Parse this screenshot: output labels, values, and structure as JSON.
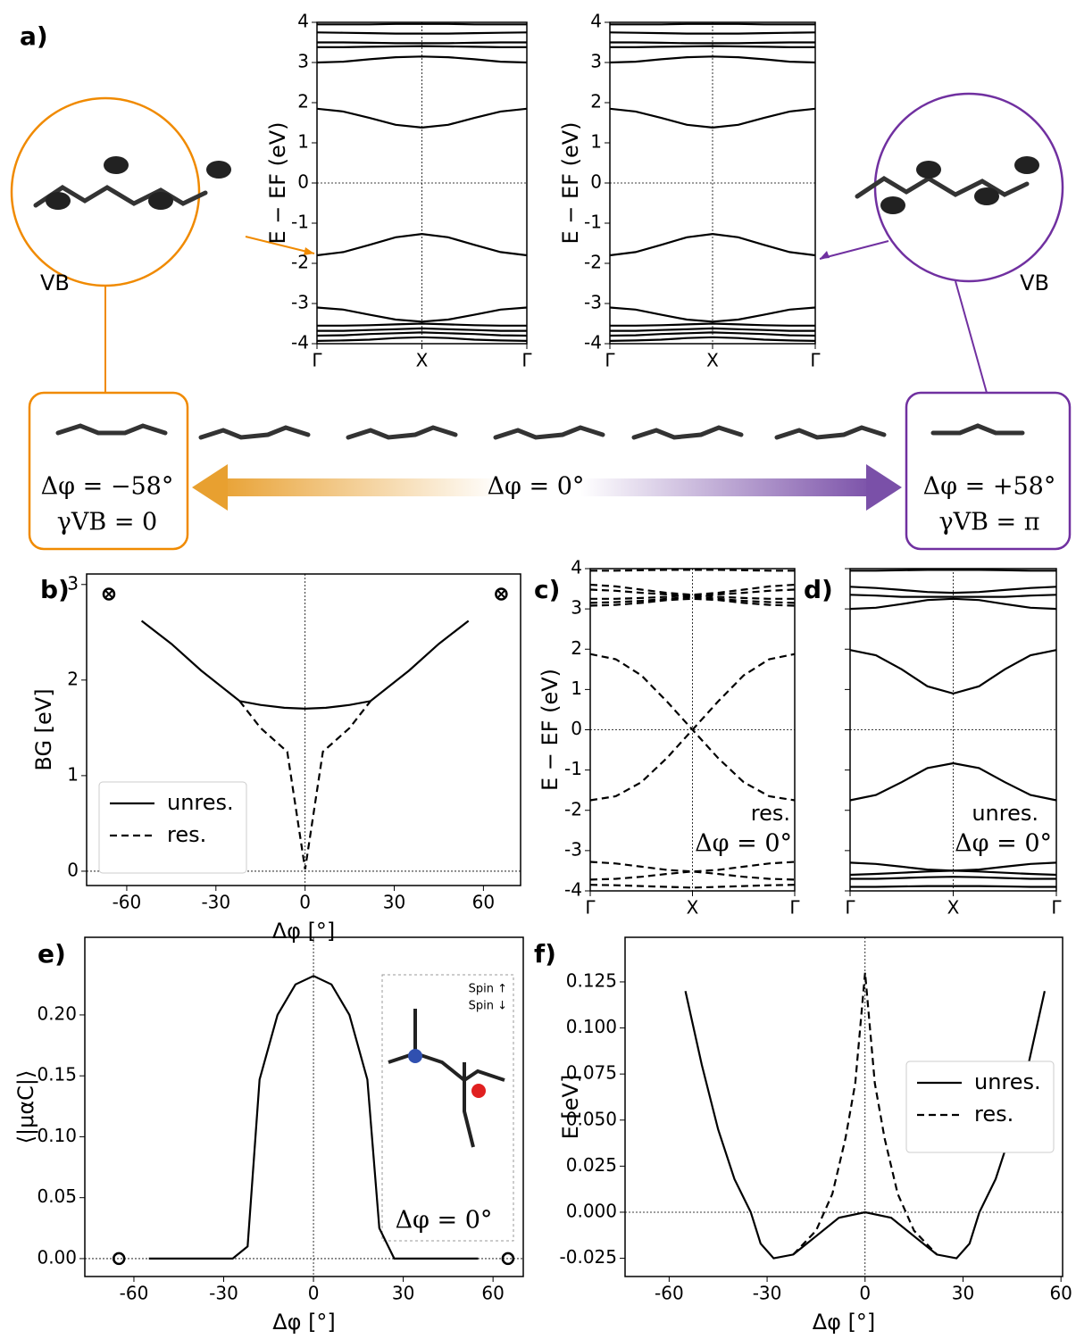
{
  "chart_data": [
    {
      "type": "line",
      "label": "a)",
      "ylabel": "E − EF (eV)",
      "xlim": [
        0,
        1
      ],
      "ylim": [
        -4,
        4
      ],
      "xticks": [
        {
          "value": 0,
          "label": "Γ"
        },
        {
          "value": 0.5,
          "label": "X"
        },
        {
          "value": 1,
          "label": "Γ"
        }
      ],
      "yticks": [
        -4,
        -3,
        -2,
        -1,
        0,
        1,
        2,
        3,
        4
      ],
      "annotations": [
        "VB",
        "Δφ = −58°",
        "γVB = 0",
        "Δφ = 0°"
      ],
      "x": [
        0,
        0.125,
        0.25,
        0.375,
        0.5,
        0.625,
        0.75,
        0.875,
        1
      ],
      "series": [
        {
          "color": "#000000",
          "values": [
            3.95,
            3.95,
            3.95,
            3.96,
            3.96,
            3.96,
            3.95,
            3.95,
            3.95
          ]
        },
        {
          "color": "#000000",
          "values": [
            3.75,
            3.74,
            3.73,
            3.72,
            3.72,
            3.72,
            3.73,
            3.74,
            3.75
          ]
        },
        {
          "color": "#000000",
          "values": [
            3.5,
            3.5,
            3.49,
            3.48,
            3.48,
            3.48,
            3.49,
            3.5,
            3.5
          ]
        },
        {
          "color": "#000000",
          "values": [
            3.38,
            3.38,
            3.39,
            3.4,
            3.41,
            3.4,
            3.39,
            3.38,
            3.38
          ]
        },
        {
          "color": "#000000",
          "values": [
            3.0,
            3.02,
            3.08,
            3.13,
            3.15,
            3.13,
            3.08,
            3.02,
            3.0
          ]
        },
        {
          "color": "#000000",
          "values": [
            1.85,
            1.78,
            1.62,
            1.45,
            1.38,
            1.45,
            1.62,
            1.78,
            1.85
          ]
        },
        {
          "color": "#000000",
          "values": [
            -1.8,
            -1.72,
            -1.54,
            -1.35,
            -1.27,
            -1.35,
            -1.54,
            -1.72,
            -1.8
          ]
        },
        {
          "color": "#000000",
          "values": [
            -3.1,
            -3.15,
            -3.28,
            -3.4,
            -3.45,
            -3.4,
            -3.28,
            -3.15,
            -3.1
          ]
        },
        {
          "color": "#000000",
          "values": [
            -3.55,
            -3.55,
            -3.54,
            -3.52,
            -3.5,
            -3.52,
            -3.54,
            -3.55,
            -3.55
          ]
        },
        {
          "color": "#000000",
          "values": [
            -3.68,
            -3.68,
            -3.66,
            -3.64,
            -3.62,
            -3.64,
            -3.66,
            -3.68,
            -3.68
          ]
        },
        {
          "color": "#000000",
          "values": [
            -3.8,
            -3.79,
            -3.76,
            -3.74,
            -3.72,
            -3.74,
            -3.76,
            -3.79,
            -3.8
          ]
        },
        {
          "color": "#000000",
          "values": [
            -3.93,
            -3.92,
            -3.9,
            -3.86,
            -3.84,
            -3.86,
            -3.9,
            -3.92,
            -3.93
          ]
        }
      ]
    },
    {
      "type": "line",
      "ylabel": "E − EF (eV)",
      "xlim": [
        0,
        1
      ],
      "ylim": [
        -4,
        4
      ],
      "xticks": [
        {
          "value": 0,
          "label": "Γ"
        },
        {
          "value": 0.5,
          "label": "X"
        },
        {
          "value": 1,
          "label": "Γ"
        }
      ],
      "yticks": [
        -4,
        -3,
        -2,
        -1,
        0,
        1,
        2,
        3,
        4
      ],
      "annotations": [
        "VB",
        "Δφ = +58°",
        "γVB = π"
      ],
      "x": [
        0,
        0.125,
        0.25,
        0.375,
        0.5,
        0.625,
        0.75,
        0.875,
        1
      ],
      "series": [
        {
          "color": "#000000",
          "values": [
            3.95,
            3.95,
            3.95,
            3.96,
            3.96,
            3.96,
            3.95,
            3.95,
            3.95
          ]
        },
        {
          "color": "#000000",
          "values": [
            3.75,
            3.74,
            3.73,
            3.72,
            3.72,
            3.72,
            3.73,
            3.74,
            3.75
          ]
        },
        {
          "color": "#000000",
          "values": [
            3.5,
            3.5,
            3.49,
            3.48,
            3.48,
            3.48,
            3.49,
            3.5,
            3.5
          ]
        },
        {
          "color": "#000000",
          "values": [
            3.38,
            3.38,
            3.39,
            3.4,
            3.41,
            3.4,
            3.39,
            3.38,
            3.38
          ]
        },
        {
          "color": "#000000",
          "values": [
            3.0,
            3.02,
            3.08,
            3.13,
            3.15,
            3.13,
            3.08,
            3.02,
            3.0
          ]
        },
        {
          "color": "#000000",
          "values": [
            1.85,
            1.78,
            1.62,
            1.45,
            1.38,
            1.45,
            1.62,
            1.78,
            1.85
          ]
        },
        {
          "color": "#000000",
          "values": [
            -1.8,
            -1.72,
            -1.54,
            -1.35,
            -1.27,
            -1.35,
            -1.54,
            -1.72,
            -1.8
          ]
        },
        {
          "color": "#000000",
          "values": [
            -3.1,
            -3.15,
            -3.28,
            -3.4,
            -3.45,
            -3.4,
            -3.28,
            -3.15,
            -3.1
          ]
        },
        {
          "color": "#000000",
          "values": [
            -3.55,
            -3.55,
            -3.54,
            -3.52,
            -3.5,
            -3.52,
            -3.54,
            -3.55,
            -3.55
          ]
        },
        {
          "color": "#000000",
          "values": [
            -3.68,
            -3.68,
            -3.66,
            -3.64,
            -3.62,
            -3.64,
            -3.66,
            -3.68,
            -3.68
          ]
        },
        {
          "color": "#000000",
          "values": [
            -3.8,
            -3.79,
            -3.76,
            -3.74,
            -3.72,
            -3.74,
            -3.76,
            -3.79,
            -3.8
          ]
        },
        {
          "color": "#000000",
          "values": [
            -3.93,
            -3.92,
            -3.9,
            -3.86,
            -3.84,
            -3.86,
            -3.9,
            -3.92,
            -3.93
          ]
        }
      ]
    },
    {
      "type": "line",
      "label": "b)",
      "xlabel": "Δφ [°]",
      "ylabel": "BG [eV]",
      "xlim": [
        -73.5,
        72.5
      ],
      "ylim": [
        -0.15,
        3.11
      ],
      "xticks": [
        -60,
        -30,
        0,
        30,
        60
      ],
      "yticks": [
        0,
        1,
        2,
        3
      ],
      "legend": "lower left",
      "series": [
        {
          "name": "unres.",
          "color": "#000000",
          "linestyle": "solid",
          "x": [
            -55,
            -45,
            -35,
            -22,
            -15,
            -7,
            0,
            7,
            15,
            22,
            35,
            45,
            55
          ],
          "values": [
            2.62,
            2.38,
            2.1,
            1.78,
            1.74,
            1.71,
            1.7,
            1.71,
            1.74,
            1.78,
            2.1,
            2.38,
            2.62
          ]
        },
        {
          "name": "res.",
          "color": "#000000",
          "linestyle": "dashed",
          "x": [
            -22,
            -15,
            -6,
            0,
            6,
            15,
            22
          ],
          "values": [
            1.78,
            1.5,
            1.25,
            0.02,
            1.25,
            1.5,
            1.78
          ]
        },
        {
          "color": "#000000",
          "marker": "circle-x",
          "x": [
            -66,
            66
          ],
          "values": [
            2.9,
            2.9
          ]
        }
      ]
    },
    {
      "type": "line",
      "label": "c)",
      "ylabel": "E − EF (eV)",
      "xlim": [
        0,
        1
      ],
      "ylim": [
        -4,
        4
      ],
      "xticks": [
        {
          "value": 0,
          "label": "Γ"
        },
        {
          "value": 0.5,
          "label": "X"
        },
        {
          "value": 1,
          "label": "Γ"
        }
      ],
      "yticks": [
        -4,
        -3,
        -2,
        -1,
        0,
        1,
        2,
        3,
        4
      ],
      "annotations": [
        "res.",
        "Δφ = 0°"
      ],
      "x": [
        0,
        0.125,
        0.25,
        0.375,
        0.5,
        0.625,
        0.75,
        0.875,
        1
      ],
      "series": [
        {
          "color": "#000000",
          "linestyle": "dashed",
          "values": [
            3.95,
            3.95,
            3.96,
            3.97,
            3.97,
            3.97,
            3.96,
            3.95,
            3.95
          ]
        },
        {
          "color": "#000000",
          "linestyle": "dashed",
          "values": [
            3.6,
            3.56,
            3.48,
            3.4,
            3.35,
            3.3,
            3.27,
            3.25,
            3.25
          ]
        },
        {
          "color": "#000000",
          "linestyle": "dashed",
          "values": [
            3.25,
            3.25,
            3.27,
            3.3,
            3.35,
            3.4,
            3.48,
            3.56,
            3.6
          ]
        },
        {
          "color": "#000000",
          "linestyle": "dashed",
          "values": [
            3.48,
            3.45,
            3.4,
            3.36,
            3.3,
            3.25,
            3.2,
            3.17,
            3.15
          ]
        },
        {
          "color": "#000000",
          "linestyle": "dashed",
          "values": [
            3.15,
            3.17,
            3.2,
            3.25,
            3.3,
            3.36,
            3.4,
            3.45,
            3.48
          ]
        },
        {
          "color": "#000000",
          "linestyle": "dashed",
          "values": [
            3.08,
            3.1,
            3.15,
            3.22,
            3.25,
            3.22,
            3.15,
            3.1,
            3.08
          ]
        },
        {
          "color": "#000000",
          "linestyle": "dashed",
          "values": [
            1.88,
            1.75,
            1.35,
            0.7,
            0,
            -0.7,
            -1.3,
            -1.65,
            -1.75
          ]
        },
        {
          "color": "#000000",
          "linestyle": "dashed",
          "values": [
            -1.75,
            -1.65,
            -1.3,
            -0.7,
            0,
            0.7,
            1.35,
            1.75,
            1.88
          ]
        },
        {
          "color": "#000000",
          "linestyle": "dashed",
          "values": [
            -3.28,
            -3.32,
            -3.4,
            -3.48,
            -3.52,
            -3.58,
            -3.65,
            -3.7,
            -3.72
          ]
        },
        {
          "color": "#000000",
          "linestyle": "dashed",
          "values": [
            -3.72,
            -3.7,
            -3.65,
            -3.58,
            -3.52,
            -3.48,
            -3.4,
            -3.32,
            -3.28
          ]
        },
        {
          "color": "#000000",
          "linestyle": "dashed",
          "values": [
            -3.85,
            -3.86,
            -3.88,
            -3.9,
            -3.92,
            -3.9,
            -3.88,
            -3.86,
            -3.85
          ]
        }
      ]
    },
    {
      "type": "line",
      "label": "d)",
      "xlim": [
        0,
        1
      ],
      "ylim": [
        -4,
        4
      ],
      "xticks": [
        {
          "value": 0,
          "label": "Γ"
        },
        {
          "value": 0.5,
          "label": "X"
        },
        {
          "value": 1,
          "label": "Γ"
        }
      ],
      "yticks": [
        -4,
        -3,
        -2,
        -1,
        0,
        1,
        2,
        3,
        4
      ],
      "hide_ytick_labels": true,
      "annotations": [
        "unres.",
        "Δφ = 0°"
      ],
      "x": [
        0,
        0.125,
        0.25,
        0.375,
        0.5,
        0.625,
        0.75,
        0.875,
        1
      ],
      "series": [
        {
          "color": "#000000",
          "values": [
            3.95,
            3.95,
            3.96,
            3.97,
            3.97,
            3.97,
            3.96,
            3.95,
            3.95
          ]
        },
        {
          "color": "#000000",
          "values": [
            3.55,
            3.52,
            3.47,
            3.42,
            3.4,
            3.42,
            3.47,
            3.52,
            3.55
          ]
        },
        {
          "color": "#000000",
          "values": [
            3.35,
            3.33,
            3.3,
            3.3,
            3.3,
            3.3,
            3.3,
            3.33,
            3.35
          ]
        },
        {
          "color": "#000000",
          "values": [
            3.0,
            3.03,
            3.12,
            3.22,
            3.25,
            3.22,
            3.12,
            3.03,
            3.0
          ]
        },
        {
          "color": "#000000",
          "values": [
            1.98,
            1.85,
            1.5,
            1.08,
            0.9,
            1.08,
            1.5,
            1.85,
            1.98
          ]
        },
        {
          "color": "#000000",
          "values": [
            -1.75,
            -1.62,
            -1.3,
            -0.95,
            -0.83,
            -0.95,
            -1.3,
            -1.62,
            -1.75
          ]
        },
        {
          "color": "#000000",
          "values": [
            -3.3,
            -3.33,
            -3.4,
            -3.47,
            -3.5,
            -3.47,
            -3.4,
            -3.33,
            -3.3
          ]
        },
        {
          "color": "#000000",
          "values": [
            -3.6,
            -3.58,
            -3.55,
            -3.52,
            -3.5,
            -3.52,
            -3.55,
            -3.58,
            -3.6
          ]
        },
        {
          "color": "#000000",
          "values": [
            -3.7,
            -3.7,
            -3.68,
            -3.66,
            -3.65,
            -3.66,
            -3.68,
            -3.7,
            -3.7
          ]
        },
        {
          "color": "#000000",
          "values": [
            -3.9,
            -3.9,
            -3.89,
            -3.88,
            -3.88,
            -3.88,
            -3.89,
            -3.9,
            -3.9
          ]
        }
      ]
    },
    {
      "type": "line",
      "label": "e)",
      "xlabel": "Δφ [°]",
      "ylabel": "⟨|μαC|⟩",
      "xlim": [
        -76.4,
        70.1
      ],
      "ylim": [
        -0.0147,
        0.2637
      ],
      "xticks": [
        -60,
        -30,
        0,
        30,
        60
      ],
      "yticks": [
        {
          "value": 0,
          "label": "0.00"
        },
        0.05,
        {
          "value": 0.1,
          "label": "0.10"
        },
        0.15,
        {
          "value": 0.2,
          "label": "0.20"
        }
      ],
      "annotations": [
        "Spin ↑",
        "Spin ↓",
        "Δφ = 0°"
      ],
      "series": [
        {
          "color": "#000000",
          "x": [
            -55,
            -27,
            -22,
            -18,
            -12,
            -6,
            0,
            6,
            12,
            18,
            22,
            27,
            55
          ],
          "values": [
            0,
            0,
            0.01,
            0.147,
            0.2,
            0.225,
            0.232,
            0.225,
            0.2,
            0.147,
            0.025,
            0,
            0
          ]
        },
        {
          "color": "#000000",
          "marker": "circle",
          "x": [
            -65,
            65
          ],
          "values": [
            0,
            0
          ]
        }
      ]
    },
    {
      "type": "line",
      "label": "f)",
      "xlabel": "Δφ [°]",
      "ylabel": "E [eV]",
      "xlim": [
        -73.5,
        60.5
      ],
      "ylim": [
        -0.0349,
        0.1492
      ],
      "xticks": [
        -60,
        -30,
        0,
        30,
        60
      ],
      "yticks": [
        -0.025,
        {
          "value": 0,
          "label": "0.000"
        },
        0.025,
        {
          "value": 0.05,
          "label": "0.050"
        },
        0.075,
        {
          "value": 0.1,
          "label": "0.100"
        },
        0.125
      ],
      "legend": "center right",
      "series": [
        {
          "name": "unres.",
          "color": "#000000",
          "linestyle": "solid",
          "x": [
            -55,
            -50,
            -45,
            -40,
            -35,
            -32,
            -28,
            -22,
            -15,
            -8,
            0,
            8,
            15,
            22,
            28,
            32,
            35,
            40,
            45,
            50,
            55
          ],
          "values": [
            0.12,
            0.08,
            0.045,
            0.018,
            0,
            -0.017,
            -0.025,
            -0.023,
            -0.013,
            -0.003,
            0,
            -0.003,
            -0.013,
            -0.023,
            -0.025,
            -0.017,
            0,
            0.018,
            0.045,
            0.08,
            0.12
          ]
        },
        {
          "name": "res.",
          "color": "#000000",
          "linestyle": "dashed",
          "x": [
            -22,
            -15,
            -10,
            -6,
            -3,
            0,
            3,
            6,
            10,
            15,
            22
          ],
          "values": [
            -0.023,
            -0.01,
            0.01,
            0.04,
            0.07,
            0.13,
            0.07,
            0.04,
            0.01,
            -0.01,
            -0.023
          ]
        }
      ]
    }
  ]
}
